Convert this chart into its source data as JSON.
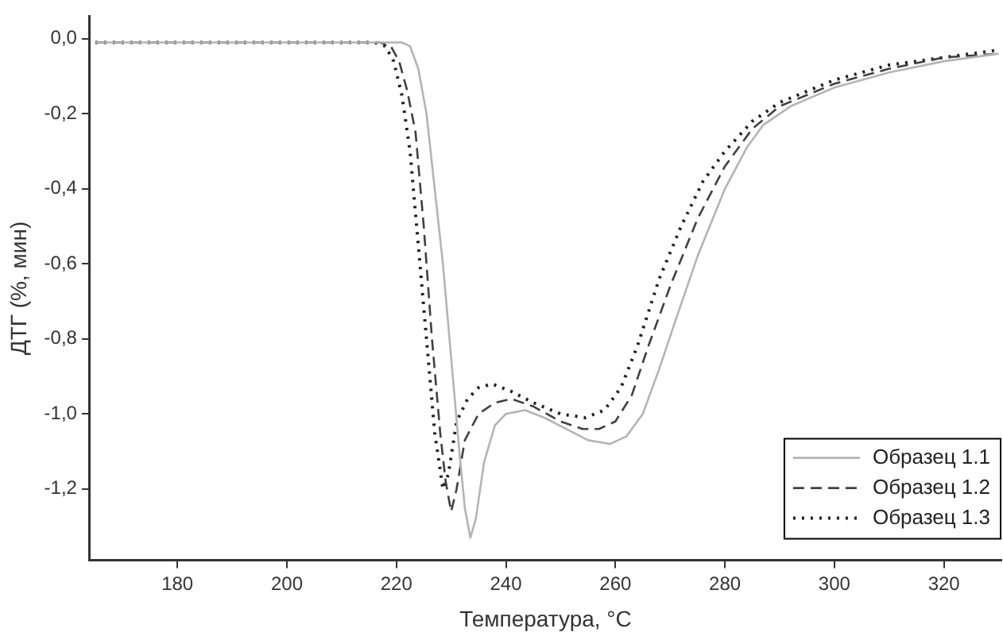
{
  "chart_data": {
    "type": "line",
    "xlabel": "Температура, °C",
    "ylabel": "ДТГ (%, мин)",
    "xlim": [
      164,
      330.5
    ],
    "ylim": [
      -1.39,
      0.06
    ],
    "xticks": [
      180,
      200,
      220,
      240,
      260,
      280,
      300,
      320
    ],
    "yticks": [
      {
        "value": 0,
        "label": "0,0"
      },
      {
        "value": -0.2,
        "label": "-0,2"
      },
      {
        "value": -0.4,
        "label": "-0,4"
      },
      {
        "value": -0.6,
        "label": "-0,6"
      },
      {
        "value": -0.8,
        "label": "-0,8"
      },
      {
        "value": -1,
        "label": "-1,0"
      },
      {
        "value": -1.2,
        "label": "-1,2"
      }
    ],
    "grid": false,
    "legend": "bottom right",
    "marker": "none",
    "series": [
      {
        "name": "Образец 1.1",
        "color": "#b4b4b4",
        "line_style": "solid",
        "x": [
          165,
          180,
          200,
          215,
          221,
          222.5,
          224,
          225.5,
          227,
          228.5,
          230,
          231.5,
          232.5,
          233.5,
          234.5,
          236,
          238,
          240,
          243.5,
          247,
          251,
          255,
          259,
          262,
          265,
          268,
          271,
          275,
          280,
          284,
          287,
          292,
          300,
          310,
          320,
          330
        ],
        "values": [
          -0.01,
          -0.01,
          -0.01,
          -0.01,
          -0.01,
          -0.02,
          -0.08,
          -0.2,
          -0.4,
          -0.6,
          -0.85,
          -1.1,
          -1.25,
          -1.33,
          -1.28,
          -1.13,
          -1.03,
          -1.0,
          -0.99,
          -1.01,
          -1.04,
          -1.07,
          -1.08,
          -1.06,
          -1.0,
          -0.88,
          -0.75,
          -0.58,
          -0.4,
          -0.29,
          -0.23,
          -0.18,
          -0.13,
          -0.09,
          -0.06,
          -0.04
        ]
      },
      {
        "name": "Образец 1.2",
        "color": "#404040",
        "line_style": "dashed",
        "x": [
          165,
          200,
          217,
          219,
          220.5,
          222,
          223.5,
          225,
          226.5,
          228,
          229,
          230,
          231,
          232.5,
          235,
          238,
          241,
          245,
          250,
          254,
          257,
          260,
          263,
          266,
          270,
          275,
          280,
          285,
          290,
          300,
          310,
          320,
          330
        ],
        "values": [
          -0.01,
          -0.01,
          -0.01,
          -0.02,
          -0.06,
          -0.14,
          -0.25,
          -0.5,
          -0.8,
          -1.05,
          -1.18,
          -1.26,
          -1.2,
          -1.07,
          -1.0,
          -0.97,
          -0.96,
          -0.98,
          -1.02,
          -1.04,
          -1.04,
          -1.02,
          -0.95,
          -0.82,
          -0.66,
          -0.48,
          -0.34,
          -0.24,
          -0.18,
          -0.12,
          -0.08,
          -0.05,
          -0.04
        ]
      },
      {
        "name": "Образец 1.3",
        "color": "#202020",
        "line_style": "dotted",
        "x": [
          165,
          200,
          216,
          218,
          219.5,
          221,
          222.5,
          224,
          225.5,
          227,
          228.5,
          229.5,
          231,
          233,
          235,
          237.5,
          241,
          245,
          250,
          254.5,
          258,
          261,
          264,
          268,
          272,
          276,
          280,
          285,
          290,
          300,
          310,
          320,
          330
        ],
        "values": [
          -0.01,
          -0.01,
          -0.01,
          -0.02,
          -0.06,
          -0.15,
          -0.3,
          -0.55,
          -0.8,
          -1.05,
          -1.2,
          -1.16,
          -1.02,
          -0.96,
          -0.93,
          -0.92,
          -0.94,
          -0.97,
          -1.0,
          -1.01,
          -0.99,
          -0.93,
          -0.82,
          -0.64,
          -0.5,
          -0.38,
          -0.3,
          -0.22,
          -0.17,
          -0.11,
          -0.07,
          -0.05,
          -0.03
        ]
      }
    ]
  }
}
